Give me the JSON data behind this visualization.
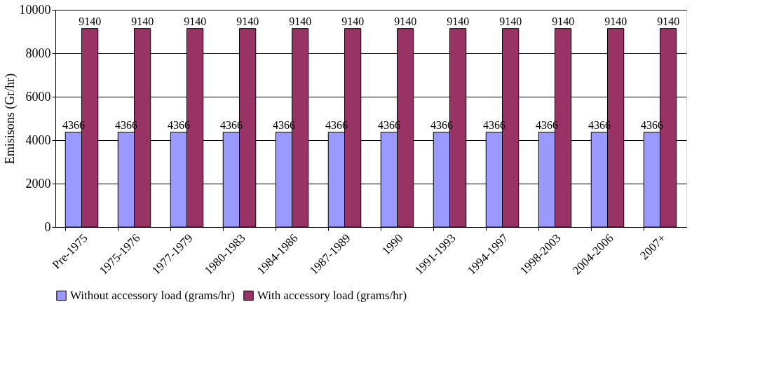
{
  "chart_data": {
    "type": "bar",
    "ylabel": "Emisisons (Gr/hr)",
    "categories": [
      "Pre-1975",
      "1975-1976",
      "1977-1979",
      "1980-1983",
      "1984-1986",
      "1987-1989",
      "1990",
      "1991-1993",
      "1994-1997",
      "1998-2003",
      "2004-2006",
      "2007+"
    ],
    "series": [
      {
        "name": "Without accessory load (grams/hr)",
        "color": "#9999ff",
        "values": [
          4366,
          4366,
          4366,
          4366,
          4366,
          4366,
          4366,
          4366,
          4366,
          4366,
          4366,
          4366
        ]
      },
      {
        "name": "With accessory load (grams/hr)",
        "color": "#993366",
        "values": [
          9140,
          9140,
          9140,
          9140,
          9140,
          9140,
          9140,
          9140,
          9140,
          9140,
          9140,
          9140
        ]
      }
    ],
    "ylim": [
      0,
      10000
    ],
    "yticks": [
      0,
      2000,
      4000,
      6000,
      8000,
      10000
    ],
    "grid": "y",
    "legend": "bottom",
    "data_labels": true
  }
}
